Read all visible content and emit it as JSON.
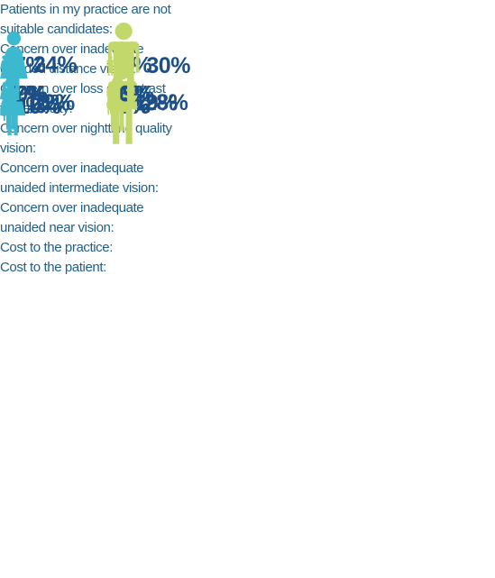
{
  "chart_data": [
    {
      "type": "pictogram",
      "title": "Patients in my practice are not suitable candidates:",
      "series": [
        {
          "color": "#3db9cf",
          "values": [
            7
          ],
          "value_labels": [
            "7%"
          ]
        },
        {
          "color": "#c3d86b",
          "values": [
            6
          ],
          "value_labels": [
            "6%"
          ]
        }
      ]
    },
    {
      "type": "pictogram",
      "title": "Concern over inadequate unaided distance vision:",
      "series": [
        {
          "color": "#3db9cf",
          "values": [
            10
          ],
          "value_labels": [
            "10%"
          ]
        },
        {
          "color": "#c3d86b",
          "values": [
            5
          ],
          "value_labels": [
            "5%"
          ]
        }
      ]
    },
    {
      "type": "pictogram",
      "title": "Concern over loss of contrast visual acuity:",
      "series": [
        {
          "color": "#3db9cf",
          "values": [
            18
          ],
          "value_labels": [
            "18%"
          ]
        },
        {
          "color": "#c3d86b",
          "values": [
            19
          ],
          "value_labels": [
            "19%"
          ]
        }
      ]
    },
    {
      "type": "pictogram",
      "title": "Concern over nighttime quality vision:",
      "series": [
        {
          "color": "#3db9cf",
          "values": [
            22
          ],
          "value_labels": [
            "22%"
          ]
        },
        {
          "color": "#c3d86b",
          "values": [
            28
          ],
          "value_labels": [
            "28%"
          ]
        }
      ]
    },
    {
      "type": "pictogram",
      "title": "Concern over inadequate unaided intermediate vision:",
      "series": [
        {
          "color": "#3db9cf",
          "values": [
            7
          ],
          "value_labels": [
            "7%"
          ]
        },
        {
          "color": "#c3d86b",
          "values": [
            6
          ],
          "value_labels": [
            "6%"
          ]
        }
      ]
    },
    {
      "type": "pictogram",
      "title": "Concern over inadequate unaided near vision:",
      "series": [
        {
          "color": "#3db9cf",
          "values": [
            9
          ],
          "value_labels": [
            "9%"
          ]
        },
        {
          "color": "#c3d86b",
          "values": [
            9
          ],
          "value_labels": [
            "9%"
          ]
        }
      ]
    },
    {
      "type": "pictogram",
      "title": "Cost to the practice:",
      "series": [
        {
          "color": "#3db9cf",
          "values": [
            7
          ],
          "value_labels": [
            "7%"
          ]
        },
        {
          "color": "#c3d86b",
          "values": [
            7
          ],
          "value_labels": [
            "7%"
          ]
        }
      ]
    },
    {
      "type": "pictogram",
      "title": "Cost to the patient:",
      "series": [
        {
          "color": "#3db9cf",
          "values": [
            24
          ],
          "value_labels": [
            "24%"
          ]
        },
        {
          "color": "#c3d86b",
          "values": [
            30
          ],
          "value_labels": [
            "30%"
          ]
        }
      ]
    }
  ]
}
